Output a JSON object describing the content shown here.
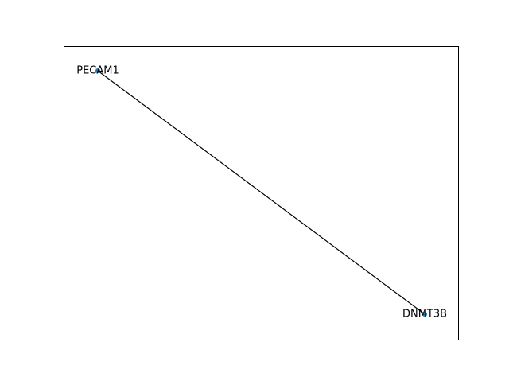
{
  "nodes": [
    {
      "label": "PECAM1"
    },
    {
      "label": "DNMT3B"
    }
  ]
}
